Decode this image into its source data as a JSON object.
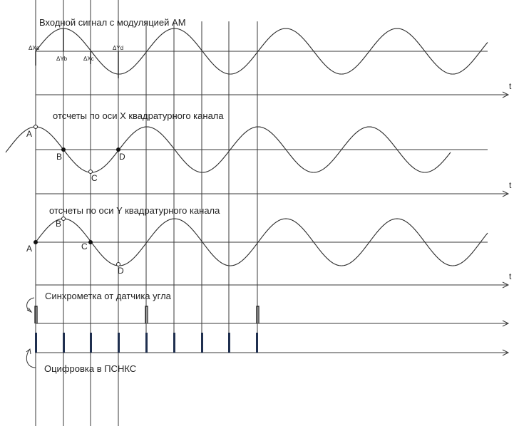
{
  "titles": {
    "am": "Входной сигнал с модуляцией АМ",
    "x": "отсчеты по оси X квадратурного канала",
    "y": "отсчеты по оси Y квадратурного канала",
    "sync": "Синхрометка от датчика угла",
    "digit": "Оцифровка в ПСНКС"
  },
  "deltas": {
    "xa": "ΔXa",
    "yb": "ΔYb",
    "xc": "ΔXc",
    "yd": "ΔYd"
  },
  "points_x": {
    "a": "A",
    "b": "B",
    "c": "C",
    "d": "D"
  },
  "points_y": {
    "a": "A",
    "b": "B",
    "c": "C",
    "d": "D"
  },
  "axis": {
    "t": "t"
  },
  "colors": {
    "line": "#3a3a3a",
    "tick": "#1f2f4f"
  }
}
